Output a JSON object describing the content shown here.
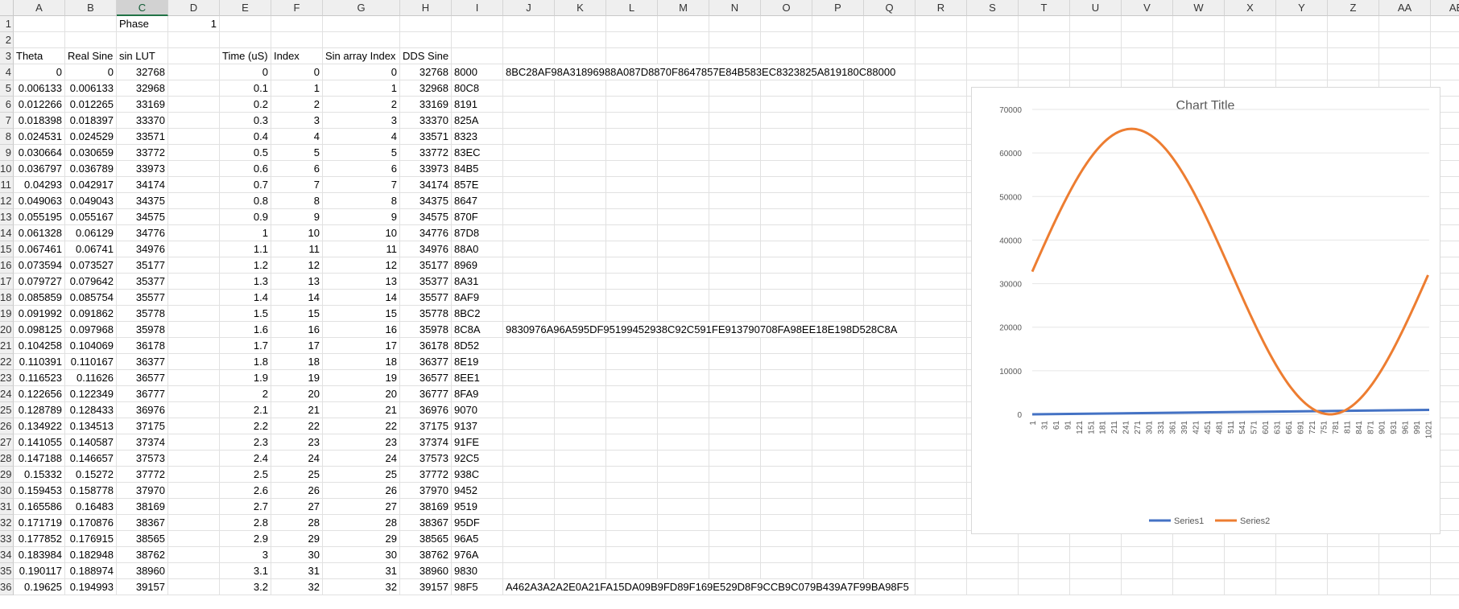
{
  "columns": [
    "A",
    "B",
    "C",
    "D",
    "E",
    "F",
    "G",
    "H",
    "I",
    "J",
    "K",
    "L",
    "M",
    "N",
    "O",
    "P",
    "Q",
    "R",
    "S",
    "T",
    "U",
    "V",
    "W",
    "X",
    "Y",
    "Z",
    "AA",
    "AB"
  ],
  "row_numbers": [
    1,
    2,
    3,
    4,
    5,
    6,
    7,
    8,
    9,
    10,
    11,
    12,
    13,
    14,
    15,
    16,
    17,
    18,
    19,
    20,
    21,
    22,
    23,
    24,
    25,
    26,
    27,
    28,
    29,
    30,
    31,
    32,
    33,
    34,
    35,
    36
  ],
  "phase": {
    "label": "Phase",
    "value": "1"
  },
  "headers": {
    "theta": "Theta",
    "real_sine": "Real Sine",
    "sin_lut": "sin LUT",
    "time": "Time (uS)",
    "index": "Index",
    "sin_array_index": "Sin array Index",
    "dds_sine": "DDS Sine"
  },
  "rows": [
    {
      "theta": "0",
      "real": "0",
      "lut": "32768",
      "time": "0",
      "index": "0",
      "sai": "0",
      "dds": "32768",
      "hex": "8000"
    },
    {
      "theta": "0.006133",
      "real": "0.006133",
      "lut": "32968",
      "time": "0.1",
      "index": "1",
      "sai": "1",
      "dds": "32968",
      "hex": "80C8"
    },
    {
      "theta": "0.012266",
      "real": "0.012265",
      "lut": "33169",
      "time": "0.2",
      "index": "2",
      "sai": "2",
      "dds": "33169",
      "hex": "8191"
    },
    {
      "theta": "0.018398",
      "real": "0.018397",
      "lut": "33370",
      "time": "0.3",
      "index": "3",
      "sai": "3",
      "dds": "33370",
      "hex": "825A"
    },
    {
      "theta": "0.024531",
      "real": "0.024529",
      "lut": "33571",
      "time": "0.4",
      "index": "4",
      "sai": "4",
      "dds": "33571",
      "hex": "8323"
    },
    {
      "theta": "0.030664",
      "real": "0.030659",
      "lut": "33772",
      "time": "0.5",
      "index": "5",
      "sai": "5",
      "dds": "33772",
      "hex": "83EC"
    },
    {
      "theta": "0.036797",
      "real": "0.036789",
      "lut": "33973",
      "time": "0.6",
      "index": "6",
      "sai": "6",
      "dds": "33973",
      "hex": "84B5"
    },
    {
      "theta": "0.04293",
      "real": "0.042917",
      "lut": "34174",
      "time": "0.7",
      "index": "7",
      "sai": "7",
      "dds": "34174",
      "hex": "857E"
    },
    {
      "theta": "0.049063",
      "real": "0.049043",
      "lut": "34375",
      "time": "0.8",
      "index": "8",
      "sai": "8",
      "dds": "34375",
      "hex": "8647"
    },
    {
      "theta": "0.055195",
      "real": "0.055167",
      "lut": "34575",
      "time": "0.9",
      "index": "9",
      "sai": "9",
      "dds": "34575",
      "hex": "870F"
    },
    {
      "theta": "0.061328",
      "real": "0.06129",
      "lut": "34776",
      "time": "1",
      "index": "10",
      "sai": "10",
      "dds": "34776",
      "hex": "87D8"
    },
    {
      "theta": "0.067461",
      "real": "0.06741",
      "lut": "34976",
      "time": "1.1",
      "index": "11",
      "sai": "11",
      "dds": "34976",
      "hex": "88A0"
    },
    {
      "theta": "0.073594",
      "real": "0.073527",
      "lut": "35177",
      "time": "1.2",
      "index": "12",
      "sai": "12",
      "dds": "35177",
      "hex": "8969"
    },
    {
      "theta": "0.079727",
      "real": "0.079642",
      "lut": "35377",
      "time": "1.3",
      "index": "13",
      "sai": "13",
      "dds": "35377",
      "hex": "8A31"
    },
    {
      "theta": "0.085859",
      "real": "0.085754",
      "lut": "35577",
      "time": "1.4",
      "index": "14",
      "sai": "14",
      "dds": "35577",
      "hex": "8AF9"
    },
    {
      "theta": "0.091992",
      "real": "0.091862",
      "lut": "35778",
      "time": "1.5",
      "index": "15",
      "sai": "15",
      "dds": "35778",
      "hex": "8BC2"
    },
    {
      "theta": "0.098125",
      "real": "0.097968",
      "lut": "35978",
      "time": "1.6",
      "index": "16",
      "sai": "16",
      "dds": "35978",
      "hex": "8C8A"
    },
    {
      "theta": "0.104258",
      "real": "0.104069",
      "lut": "36178",
      "time": "1.7",
      "index": "17",
      "sai": "17",
      "dds": "36178",
      "hex": "8D52"
    },
    {
      "theta": "0.110391",
      "real": "0.110167",
      "lut": "36377",
      "time": "1.8",
      "index": "18",
      "sai": "18",
      "dds": "36377",
      "hex": "8E19"
    },
    {
      "theta": "0.116523",
      "real": "0.11626",
      "lut": "36577",
      "time": "1.9",
      "index": "19",
      "sai": "19",
      "dds": "36577",
      "hex": "8EE1"
    },
    {
      "theta": "0.122656",
      "real": "0.122349",
      "lut": "36777",
      "time": "2",
      "index": "20",
      "sai": "20",
      "dds": "36777",
      "hex": "8FA9"
    },
    {
      "theta": "0.128789",
      "real": "0.128433",
      "lut": "36976",
      "time": "2.1",
      "index": "21",
      "sai": "21",
      "dds": "36976",
      "hex": "9070"
    },
    {
      "theta": "0.134922",
      "real": "0.134513",
      "lut": "37175",
      "time": "2.2",
      "index": "22",
      "sai": "22",
      "dds": "37175",
      "hex": "9137"
    },
    {
      "theta": "0.141055",
      "real": "0.140587",
      "lut": "37374",
      "time": "2.3",
      "index": "23",
      "sai": "23",
      "dds": "37374",
      "hex": "91FE"
    },
    {
      "theta": "0.147188",
      "real": "0.146657",
      "lut": "37573",
      "time": "2.4",
      "index": "24",
      "sai": "24",
      "dds": "37573",
      "hex": "92C5"
    },
    {
      "theta": "0.15332",
      "real": "0.15272",
      "lut": "37772",
      "time": "2.5",
      "index": "25",
      "sai": "25",
      "dds": "37772",
      "hex": "938C"
    },
    {
      "theta": "0.159453",
      "real": "0.158778",
      "lut": "37970",
      "time": "2.6",
      "index": "26",
      "sai": "26",
      "dds": "37970",
      "hex": "9452"
    },
    {
      "theta": "0.165586",
      "real": "0.16483",
      "lut": "38169",
      "time": "2.7",
      "index": "27",
      "sai": "27",
      "dds": "38169",
      "hex": "9519"
    },
    {
      "theta": "0.171719",
      "real": "0.170876",
      "lut": "38367",
      "time": "2.8",
      "index": "28",
      "sai": "28",
      "dds": "38367",
      "hex": "95DF"
    },
    {
      "theta": "0.177852",
      "real": "0.176915",
      "lut": "38565",
      "time": "2.9",
      "index": "29",
      "sai": "29",
      "dds": "38565",
      "hex": "96A5"
    },
    {
      "theta": "0.183984",
      "real": "0.182948",
      "lut": "38762",
      "time": "3",
      "index": "30",
      "sai": "30",
      "dds": "38762",
      "hex": "976A"
    },
    {
      "theta": "0.190117",
      "real": "0.188974",
      "lut": "38960",
      "time": "3.1",
      "index": "31",
      "sai": "31",
      "dds": "38960",
      "hex": "9830"
    },
    {
      "theta": "0.19625",
      "real": "0.194993",
      "lut": "39157",
      "time": "3.2",
      "index": "32",
      "sai": "32",
      "dds": "39157",
      "hex": "98F5"
    }
  ],
  "concat_strings": [
    {
      "row": 4,
      "text": "8BC28AF98A31896988A087D8870F8647857E84B583EC8323825A819180C88000"
    },
    {
      "row": 20,
      "text": "9830976A96A595DF95199452938C92C591FE913790708FA98EE18E198D528C8A"
    },
    {
      "row": 36,
      "text": "A462A3A2A2E0A21FA15DA09B9FD89F169E529D8F9CCB9C079B439A7F99BA98F5"
    }
  ],
  "colors": {
    "series1": "#4472C4",
    "series2": "#ED7D31",
    "selected_header": "#217346"
  },
  "chart_data": {
    "type": "line",
    "title": "Chart Title",
    "x_tick_labels": [
      "1",
      "31",
      "61",
      "91",
      "121",
      "151",
      "181",
      "211",
      "241",
      "271",
      "301",
      "331",
      "361",
      "391",
      "421",
      "451",
      "481",
      "511",
      "541",
      "571",
      "601",
      "631",
      "661",
      "691",
      "721",
      "751",
      "781",
      "811",
      "841",
      "871",
      "901",
      "931",
      "961",
      "991",
      "1021"
    ],
    "xlim": [
      1,
      1024
    ],
    "ylim": [
      0,
      70000
    ],
    "y_ticks": [
      "0",
      "10000",
      "20000",
      "30000",
      "40000",
      "50000",
      "60000",
      "70000"
    ],
    "grid": true,
    "legend_position": "bottom",
    "series": [
      {
        "name": "Series1",
        "description": "Index 0..1023 (linear)",
        "x_start": 1,
        "x_end": 1024,
        "y_start": 0,
        "y_end": 1023
      },
      {
        "name": "Series2",
        "description": "DDS Sine = 32768 + 32767*sin(2*pi*(i-1)/1024)",
        "x_start": 1,
        "x_end": 1024,
        "offset": 32768,
        "amplitude": 32767,
        "period": 1024
      }
    ]
  }
}
